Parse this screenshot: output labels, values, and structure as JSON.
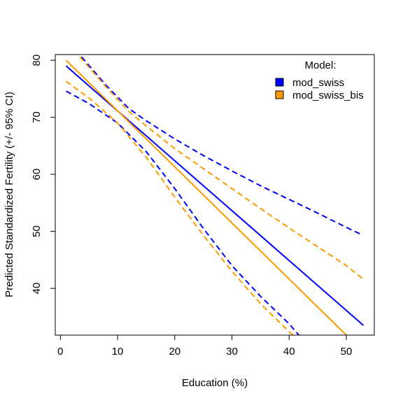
{
  "chart_data": {
    "type": "line",
    "title": "",
    "xlabel": "Education (%)",
    "ylabel": "Predicted Standardized Fertility (+/- 95% CI)",
    "xlim": [
      -0.9,
      54.9
    ],
    "ylim": [
      31.8,
      81.0
    ],
    "xticks": [
      0,
      10,
      20,
      30,
      40,
      50
    ],
    "yticks": [
      40,
      50,
      60,
      70,
      80
    ],
    "x_tick_labels": [
      "0",
      "10",
      "20",
      "30",
      "40",
      "50"
    ],
    "y_tick_labels": [
      "40",
      "50",
      "60",
      "70",
      "80"
    ],
    "grid": false,
    "legend": {
      "title": "Model:",
      "position": "top-right",
      "entries": [
        "mod_swiss",
        "mod_swiss_bis"
      ]
    },
    "series": [
      {
        "name": "mod_swiss",
        "color": "#0000FF",
        "fit": [
          [
            1,
            79.0
          ],
          [
            53,
            33.5
          ]
        ],
        "lower": [
          [
            1,
            74.6
          ],
          [
            5,
            72.4
          ],
          [
            10,
            69.0
          ],
          [
            15,
            64.0
          ],
          [
            20,
            57.5
          ],
          [
            25,
            50.5
          ],
          [
            30,
            44.0
          ],
          [
            35,
            38.6
          ],
          [
            40,
            33.8
          ],
          [
            41.7,
            31.8
          ]
        ],
        "upper": [
          [
            3.7,
            80.6
          ],
          [
            8,
            75.6
          ],
          [
            12,
            71.5
          ],
          [
            15,
            69.4
          ],
          [
            20,
            66.2
          ],
          [
            25,
            63.3
          ],
          [
            30,
            60.6
          ],
          [
            35,
            58.0
          ],
          [
            40,
            55.6
          ],
          [
            45,
            53.2
          ],
          [
            50,
            50.7
          ],
          [
            52.5,
            49.5
          ]
        ]
      },
      {
        "name": "mod_swiss_bis",
        "color": "#FF9900",
        "fit": [
          [
            1,
            80.0
          ],
          [
            50,
            31.8
          ]
        ],
        "lower": [
          [
            1,
            76.3
          ],
          [
            5,
            73.4
          ],
          [
            10,
            69.0
          ],
          [
            15,
            63.0
          ],
          [
            20,
            56.0
          ],
          [
            25,
            49.3
          ],
          [
            30,
            43.0
          ],
          [
            35,
            37.3
          ],
          [
            40,
            32.4
          ],
          [
            40.7,
            31.8
          ]
        ],
        "upper": [
          [
            3.4,
            80.6
          ],
          [
            8,
            75.3
          ],
          [
            12,
            71.0
          ],
          [
            15,
            68.5
          ],
          [
            20,
            64.5
          ],
          [
            25,
            61.0
          ],
          [
            30,
            57.5
          ],
          [
            35,
            54.0
          ],
          [
            40,
            50.6
          ],
          [
            45,
            47.3
          ],
          [
            50,
            44.0
          ],
          [
            53,
            41.6
          ]
        ]
      }
    ]
  }
}
